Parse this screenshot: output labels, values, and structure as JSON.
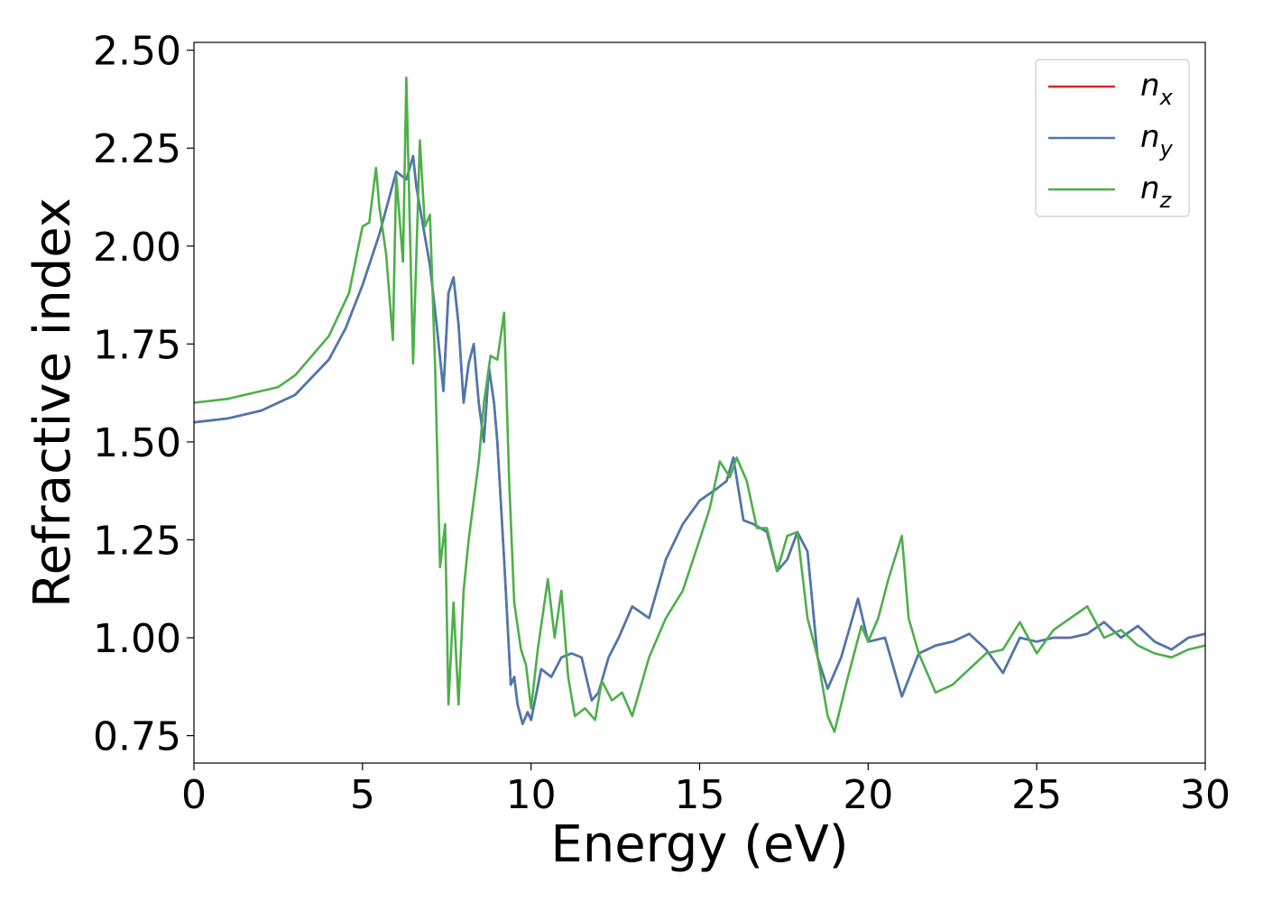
{
  "chart_data": {
    "type": "line",
    "title": "",
    "xlabel": "Energy (eV)",
    "ylabel": "Refractive index",
    "xlim": [
      0,
      30
    ],
    "ylim": [
      0.68,
      2.52
    ],
    "xticks": [
      0,
      5,
      10,
      15,
      20,
      25,
      30
    ],
    "xtick_labels": [
      "0",
      "5",
      "10",
      "15",
      "20",
      "25",
      "30"
    ],
    "yticks": [
      0.75,
      1.0,
      1.25,
      1.5,
      1.75,
      2.0,
      2.25,
      2.5
    ],
    "ytick_labels": [
      "0.75",
      "1.00",
      "1.25",
      "1.50",
      "1.75",
      "2.00",
      "2.25",
      "2.50"
    ],
    "grid": false,
    "legend_position": "top-right",
    "series": [
      {
        "name": "n_x",
        "label_main": "n",
        "label_sub": "x",
        "color": "#d62728",
        "x": [
          0,
          1,
          2,
          3,
          4,
          4.5,
          5,
          5.5,
          6,
          6.3,
          6.5,
          6.6,
          6.8,
          7.0,
          7.2,
          7.4,
          7.55,
          7.7,
          7.85,
          8.0,
          8.15,
          8.3,
          8.45,
          8.6,
          8.75,
          8.9,
          9.0,
          9.2,
          9.4,
          9.5,
          9.6,
          9.75,
          9.9,
          10.0,
          10.3,
          10.6,
          10.9,
          11.2,
          11.5,
          11.8,
          12.0,
          12.3,
          12.6,
          13.0,
          13.5,
          14.0,
          14.5,
          15.0,
          15.5,
          15.8,
          16.0,
          16.3,
          16.6,
          17.0,
          17.3,
          17.6,
          17.9,
          18.2,
          18.5,
          18.8,
          19.2,
          19.7,
          20.0,
          20.5,
          21.0,
          21.5,
          22.0,
          22.5,
          23.0,
          23.5,
          24.0,
          24.5,
          25.0,
          25.5,
          26.0,
          26.5,
          27.0,
          27.5,
          28.0,
          28.5,
          29.0,
          29.5,
          30.0
        ],
        "y": [
          1.55,
          1.56,
          1.58,
          1.62,
          1.71,
          1.79,
          1.9,
          2.03,
          2.19,
          2.17,
          2.23,
          2.15,
          2.05,
          1.95,
          1.8,
          1.63,
          1.88,
          1.92,
          1.8,
          1.6,
          1.7,
          1.75,
          1.6,
          1.5,
          1.69,
          1.6,
          1.5,
          1.2,
          0.88,
          0.9,
          0.83,
          0.78,
          0.81,
          0.79,
          0.92,
          0.9,
          0.95,
          0.96,
          0.95,
          0.84,
          0.86,
          0.95,
          1.0,
          1.08,
          1.05,
          1.2,
          1.29,
          1.35,
          1.38,
          1.4,
          1.46,
          1.3,
          1.29,
          1.27,
          1.17,
          1.2,
          1.27,
          1.22,
          0.95,
          0.87,
          0.95,
          1.1,
          0.99,
          1.0,
          0.85,
          0.96,
          0.98,
          0.99,
          1.01,
          0.97,
          0.91,
          1.0,
          0.99,
          1.0,
          1.0,
          1.01,
          1.04,
          1.0,
          1.03,
          0.99,
          0.97,
          1.0,
          1.01
        ]
      },
      {
        "name": "n_y",
        "label_main": "n",
        "label_sub": "y",
        "color": "#4a78b0",
        "x": [
          0,
          1,
          2,
          3,
          4,
          4.5,
          5,
          5.5,
          6,
          6.3,
          6.5,
          6.6,
          6.8,
          7.0,
          7.2,
          7.4,
          7.55,
          7.7,
          7.85,
          8.0,
          8.15,
          8.3,
          8.45,
          8.6,
          8.75,
          8.9,
          9.0,
          9.2,
          9.4,
          9.5,
          9.6,
          9.75,
          9.9,
          10.0,
          10.3,
          10.6,
          10.9,
          11.2,
          11.5,
          11.8,
          12.0,
          12.3,
          12.6,
          13.0,
          13.5,
          14.0,
          14.5,
          15.0,
          15.5,
          15.8,
          16.0,
          16.3,
          16.6,
          17.0,
          17.3,
          17.6,
          17.9,
          18.2,
          18.5,
          18.8,
          19.2,
          19.7,
          20.0,
          20.5,
          21.0,
          21.5,
          22.0,
          22.5,
          23.0,
          23.5,
          24.0,
          24.5,
          25.0,
          25.5,
          26.0,
          26.5,
          27.0,
          27.5,
          28.0,
          28.5,
          29.0,
          29.5,
          30.0
        ],
        "y": [
          1.55,
          1.56,
          1.58,
          1.62,
          1.71,
          1.79,
          1.9,
          2.03,
          2.19,
          2.17,
          2.23,
          2.15,
          2.05,
          1.95,
          1.8,
          1.63,
          1.88,
          1.92,
          1.8,
          1.6,
          1.7,
          1.75,
          1.6,
          1.5,
          1.69,
          1.6,
          1.5,
          1.2,
          0.88,
          0.9,
          0.83,
          0.78,
          0.81,
          0.79,
          0.92,
          0.9,
          0.95,
          0.96,
          0.95,
          0.84,
          0.86,
          0.95,
          1.0,
          1.08,
          1.05,
          1.2,
          1.29,
          1.35,
          1.38,
          1.4,
          1.46,
          1.3,
          1.29,
          1.27,
          1.17,
          1.2,
          1.27,
          1.22,
          0.95,
          0.87,
          0.95,
          1.1,
          0.99,
          1.0,
          0.85,
          0.96,
          0.98,
          0.99,
          1.01,
          0.97,
          0.91,
          1.0,
          0.99,
          1.0,
          1.0,
          1.01,
          1.04,
          1.0,
          1.03,
          0.99,
          0.97,
          1.0,
          1.01
        ]
      },
      {
        "name": "n_z",
        "label_main": "n",
        "label_sub": "z",
        "color": "#4daf4a",
        "x": [
          0,
          1,
          2,
          2.5,
          3,
          4,
          4.6,
          5.0,
          5.2,
          5.4,
          5.5,
          5.7,
          5.9,
          6.0,
          6.2,
          6.3,
          6.5,
          6.7,
          6.85,
          7.0,
          7.15,
          7.3,
          7.45,
          7.55,
          7.7,
          7.85,
          8.0,
          8.15,
          8.3,
          8.45,
          8.6,
          8.8,
          9.0,
          9.2,
          9.35,
          9.5,
          9.7,
          9.85,
          10.0,
          10.2,
          10.5,
          10.7,
          10.9,
          11.1,
          11.3,
          11.6,
          11.9,
          12.1,
          12.4,
          12.7,
          13.0,
          13.5,
          14.0,
          14.5,
          15.0,
          15.3,
          15.6,
          15.9,
          16.1,
          16.4,
          16.7,
          17.0,
          17.3,
          17.6,
          17.9,
          18.2,
          18.5,
          18.8,
          19.0,
          19.4,
          19.8,
          20.0,
          20.3,
          20.6,
          21.0,
          21.2,
          21.5,
          22.0,
          22.5,
          23.0,
          23.5,
          24.0,
          24.5,
          25.0,
          25.5,
          26.0,
          26.5,
          27.0,
          27.5,
          28.0,
          28.5,
          29.0,
          29.5,
          30.0
        ],
        "y": [
          1.6,
          1.61,
          1.63,
          1.64,
          1.67,
          1.77,
          1.88,
          2.05,
          2.06,
          2.2,
          2.1,
          1.98,
          1.76,
          2.18,
          1.96,
          2.43,
          1.7,
          2.27,
          2.05,
          2.08,
          1.7,
          1.18,
          1.29,
          0.83,
          1.09,
          0.83,
          1.12,
          1.25,
          1.35,
          1.45,
          1.6,
          1.72,
          1.71,
          1.83,
          1.4,
          1.09,
          0.97,
          0.93,
          0.82,
          0.97,
          1.15,
          1.0,
          1.12,
          0.9,
          0.8,
          0.82,
          0.79,
          0.89,
          0.84,
          0.86,
          0.8,
          0.95,
          1.05,
          1.12,
          1.25,
          1.33,
          1.45,
          1.41,
          1.46,
          1.4,
          1.28,
          1.28,
          1.17,
          1.26,
          1.27,
          1.05,
          0.95,
          0.8,
          0.76,
          0.9,
          1.03,
          0.99,
          1.05,
          1.15,
          1.26,
          1.05,
          0.96,
          0.86,
          0.88,
          0.92,
          0.96,
          0.97,
          1.04,
          0.96,
          1.02,
          1.05,
          1.08,
          1.0,
          1.02,
          0.98,
          0.96,
          0.95,
          0.97,
          0.98
        ]
      }
    ]
  }
}
